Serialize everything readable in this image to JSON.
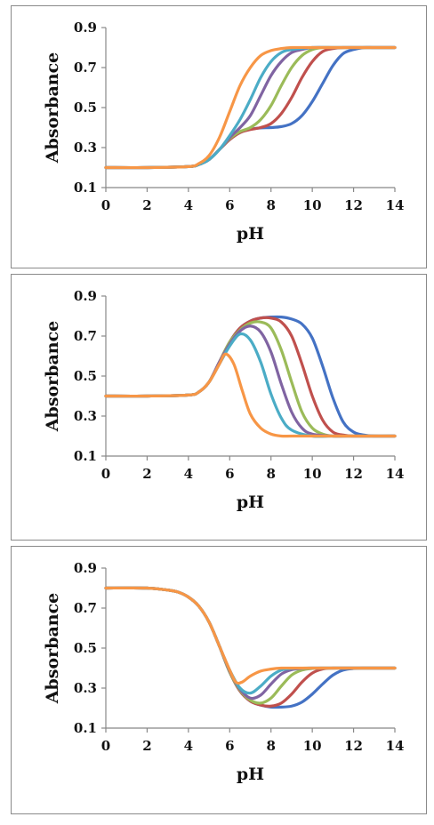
{
  "chart_data": [
    {
      "type": "line",
      "xlabel": "pH",
      "ylabel": "Absorbance",
      "xlim": [
        0,
        14
      ],
      "ylim": [
        0.1,
        0.9
      ],
      "xticks": [
        "0",
        "2",
        "4",
        "6",
        "8",
        "10",
        "12",
        "14"
      ],
      "yticks": [
        "0.1",
        "0.3",
        "0.5",
        "0.7",
        "0.9"
      ],
      "grid": false,
      "legend": "none",
      "series": [
        {
          "color": "#4472C4",
          "x": [
            0,
            2,
            4,
            4.5,
            5,
            5.5,
            6,
            6.5,
            7,
            7.5,
            8,
            8.5,
            9,
            9.5,
            10,
            10.5,
            11,
            11.5,
            12,
            12.5,
            13,
            14
          ],
          "y": [
            0.2,
            0.2,
            0.205,
            0.215,
            0.24,
            0.29,
            0.34,
            0.375,
            0.392,
            0.398,
            0.4,
            0.405,
            0.42,
            0.46,
            0.53,
            0.62,
            0.71,
            0.77,
            0.79,
            0.8,
            0.8,
            0.8
          ]
        },
        {
          "color": "#C0504D",
          "x": [
            0,
            2,
            4,
            4.5,
            5,
            5.5,
            6,
            6.5,
            7,
            7.5,
            8,
            8.5,
            9,
            9.5,
            10,
            10.5,
            11,
            11.5,
            12,
            13,
            14
          ],
          "y": [
            0.2,
            0.2,
            0.205,
            0.215,
            0.24,
            0.29,
            0.34,
            0.375,
            0.39,
            0.4,
            0.42,
            0.47,
            0.55,
            0.65,
            0.73,
            0.78,
            0.795,
            0.8,
            0.8,
            0.8,
            0.8
          ]
        },
        {
          "color": "#9BBB59",
          "x": [
            0,
            2,
            4,
            4.5,
            5,
            5.5,
            6,
            6.5,
            7,
            7.5,
            8,
            8.5,
            9,
            9.5,
            10,
            10.5,
            11,
            12,
            13,
            14
          ],
          "y": [
            0.2,
            0.2,
            0.205,
            0.215,
            0.24,
            0.29,
            0.345,
            0.38,
            0.4,
            0.44,
            0.51,
            0.61,
            0.7,
            0.76,
            0.79,
            0.8,
            0.8,
            0.8,
            0.8,
            0.8
          ]
        },
        {
          "color": "#8064A2",
          "x": [
            0,
            2,
            4,
            4.5,
            5,
            5.5,
            6,
            6.5,
            7,
            7.5,
            8,
            8.5,
            9,
            9.5,
            10,
            11,
            12,
            13,
            14
          ],
          "y": [
            0.2,
            0.2,
            0.205,
            0.215,
            0.24,
            0.29,
            0.35,
            0.4,
            0.46,
            0.56,
            0.66,
            0.73,
            0.775,
            0.79,
            0.8,
            0.8,
            0.8,
            0.8,
            0.8
          ]
        },
        {
          "color": "#4BACC6",
          "x": [
            0,
            2,
            4,
            4.5,
            5,
            5.5,
            6,
            6.5,
            7,
            7.5,
            8,
            8.5,
            9,
            10,
            11,
            12,
            13,
            14
          ],
          "y": [
            0.2,
            0.2,
            0.205,
            0.215,
            0.24,
            0.29,
            0.36,
            0.44,
            0.54,
            0.65,
            0.73,
            0.775,
            0.79,
            0.8,
            0.8,
            0.8,
            0.8,
            0.8
          ]
        },
        {
          "color": "#F79646",
          "x": [
            0,
            2,
            4,
            4.5,
            5,
            5.5,
            6,
            6.5,
            7,
            7.5,
            8,
            8.5,
            9,
            10,
            11,
            12,
            13,
            14
          ],
          "y": [
            0.2,
            0.2,
            0.205,
            0.22,
            0.26,
            0.35,
            0.48,
            0.61,
            0.7,
            0.76,
            0.785,
            0.795,
            0.8,
            0.8,
            0.8,
            0.8,
            0.8,
            0.8
          ]
        }
      ]
    },
    {
      "type": "line",
      "xlabel": "pH",
      "ylabel": "Absorbance",
      "xlim": [
        0,
        14
      ],
      "ylim": [
        0.1,
        0.9
      ],
      "xticks": [
        "0",
        "2",
        "4",
        "6",
        "8",
        "10",
        "12",
        "14"
      ],
      "yticks": [
        "0.1",
        "0.3",
        "0.5",
        "0.7",
        "0.9"
      ],
      "grid": false,
      "legend": "none",
      "series": [
        {
          "color": "#4472C4",
          "x": [
            0,
            2,
            4,
            4.5,
            5,
            5.5,
            6,
            6.5,
            7,
            7.5,
            8,
            8.5,
            9,
            9.5,
            10,
            10.5,
            11,
            11.5,
            12,
            12.5,
            13,
            14
          ],
          "y": [
            0.4,
            0.4,
            0.405,
            0.42,
            0.47,
            0.57,
            0.67,
            0.74,
            0.775,
            0.79,
            0.795,
            0.795,
            0.785,
            0.76,
            0.69,
            0.55,
            0.39,
            0.27,
            0.22,
            0.205,
            0.2,
            0.2
          ]
        },
        {
          "color": "#C0504D",
          "x": [
            0,
            2,
            4,
            4.5,
            5,
            5.5,
            6,
            6.5,
            7,
            7.5,
            8,
            8.5,
            9,
            9.5,
            10,
            10.5,
            11,
            11.5,
            12,
            13,
            14
          ],
          "y": [
            0.4,
            0.4,
            0.405,
            0.42,
            0.47,
            0.57,
            0.67,
            0.74,
            0.775,
            0.79,
            0.79,
            0.77,
            0.7,
            0.56,
            0.4,
            0.28,
            0.22,
            0.205,
            0.2,
            0.2,
            0.2
          ]
        },
        {
          "color": "#9BBB59",
          "x": [
            0,
            2,
            4,
            4.5,
            5,
            5.5,
            6,
            6.5,
            7,
            7.5,
            8,
            8.5,
            9,
            9.5,
            10,
            10.5,
            11,
            12,
            13,
            14
          ],
          "y": [
            0.4,
            0.4,
            0.405,
            0.42,
            0.47,
            0.57,
            0.67,
            0.73,
            0.765,
            0.77,
            0.74,
            0.63,
            0.47,
            0.32,
            0.24,
            0.21,
            0.2,
            0.2,
            0.2,
            0.2
          ]
        },
        {
          "color": "#8064A2",
          "x": [
            0,
            2,
            4,
            4.5,
            5,
            5.5,
            6,
            6.5,
            7,
            7.5,
            8,
            8.5,
            9,
            9.5,
            10,
            11,
            12,
            13,
            14
          ],
          "y": [
            0.4,
            0.4,
            0.405,
            0.42,
            0.47,
            0.57,
            0.66,
            0.725,
            0.75,
            0.72,
            0.62,
            0.46,
            0.32,
            0.24,
            0.21,
            0.2,
            0.2,
            0.2,
            0.2
          ]
        },
        {
          "color": "#4BACC6",
          "x": [
            0,
            2,
            4,
            4.5,
            5,
            5.5,
            6,
            6.5,
            7,
            7.5,
            8,
            8.5,
            9,
            10,
            11,
            12,
            13,
            14
          ],
          "y": [
            0.4,
            0.4,
            0.405,
            0.42,
            0.47,
            0.56,
            0.65,
            0.71,
            0.68,
            0.57,
            0.41,
            0.29,
            0.23,
            0.2,
            0.2,
            0.2,
            0.2,
            0.2
          ]
        },
        {
          "color": "#F79646",
          "x": [
            0,
            2,
            4,
            4.5,
            5,
            5.5,
            5.8,
            6.2,
            6.6,
            7,
            7.5,
            8,
            8.5,
            9,
            10,
            11,
            12,
            13,
            14
          ],
          "y": [
            0.4,
            0.4,
            0.405,
            0.42,
            0.47,
            0.56,
            0.61,
            0.56,
            0.43,
            0.31,
            0.24,
            0.21,
            0.2,
            0.2,
            0.2,
            0.2,
            0.2,
            0.2,
            0.2
          ]
        }
      ]
    },
    {
      "type": "line",
      "xlabel": "pH",
      "ylabel": "Absorbance",
      "xlim": [
        0,
        14
      ],
      "ylim": [
        0.1,
        0.9
      ],
      "xticks": [
        "0",
        "2",
        "4",
        "6",
        "8",
        "10",
        "12",
        "14"
      ],
      "yticks": [
        "0.1",
        "0.3",
        "0.5",
        "0.7",
        "0.9"
      ],
      "grid": false,
      "legend": "none",
      "series": [
        {
          "color": "#4472C4",
          "x": [
            0,
            2,
            3,
            3.5,
            4,
            4.5,
            5,
            5.5,
            6,
            6.5,
            7,
            7.5,
            8,
            8.5,
            9,
            9.5,
            10,
            10.5,
            11,
            11.5,
            12,
            12.5,
            13,
            14
          ],
          "y": [
            0.8,
            0.8,
            0.79,
            0.78,
            0.755,
            0.71,
            0.63,
            0.51,
            0.38,
            0.285,
            0.235,
            0.215,
            0.205,
            0.205,
            0.21,
            0.23,
            0.27,
            0.32,
            0.365,
            0.39,
            0.398,
            0.4,
            0.4,
            0.4
          ]
        },
        {
          "color": "#C0504D",
          "x": [
            0,
            2,
            3,
            3.5,
            4,
            4.5,
            5,
            5.5,
            6,
            6.5,
            7,
            7.5,
            8,
            8.5,
            9,
            9.5,
            10,
            10.5,
            11,
            11.5,
            12,
            13,
            14
          ],
          "y": [
            0.8,
            0.8,
            0.79,
            0.78,
            0.755,
            0.71,
            0.63,
            0.51,
            0.38,
            0.285,
            0.235,
            0.215,
            0.21,
            0.225,
            0.27,
            0.33,
            0.375,
            0.395,
            0.4,
            0.4,
            0.4,
            0.4,
            0.4
          ]
        },
        {
          "color": "#9BBB59",
          "x": [
            0,
            2,
            3,
            3.5,
            4,
            4.5,
            5,
            5.5,
            6,
            6.5,
            7,
            7.5,
            8,
            8.5,
            9,
            9.5,
            10,
            10.5,
            11,
            12,
            13,
            14
          ],
          "y": [
            0.8,
            0.8,
            0.79,
            0.78,
            0.755,
            0.71,
            0.63,
            0.51,
            0.38,
            0.29,
            0.24,
            0.225,
            0.25,
            0.31,
            0.365,
            0.39,
            0.398,
            0.4,
            0.4,
            0.4,
            0.4,
            0.4
          ]
        },
        {
          "color": "#8064A2",
          "x": [
            0,
            2,
            3,
            3.5,
            4,
            4.5,
            5,
            5.5,
            6,
            6.5,
            7,
            7.5,
            8,
            8.5,
            9,
            9.5,
            10,
            11,
            12,
            13,
            14
          ],
          "y": [
            0.8,
            0.8,
            0.79,
            0.78,
            0.755,
            0.71,
            0.63,
            0.51,
            0.385,
            0.295,
            0.25,
            0.265,
            0.32,
            0.37,
            0.392,
            0.398,
            0.4,
            0.4,
            0.4,
            0.4,
            0.4
          ]
        },
        {
          "color": "#4BACC6",
          "x": [
            0,
            2,
            3,
            3.5,
            4,
            4.5,
            5,
            5.5,
            6,
            6.5,
            7,
            7.5,
            8,
            8.5,
            9,
            10,
            11,
            12,
            13,
            14
          ],
          "y": [
            0.8,
            0.8,
            0.79,
            0.78,
            0.755,
            0.71,
            0.63,
            0.51,
            0.39,
            0.3,
            0.275,
            0.31,
            0.36,
            0.39,
            0.398,
            0.4,
            0.4,
            0.4,
            0.4,
            0.4
          ]
        },
        {
          "color": "#F79646",
          "x": [
            0,
            2,
            3,
            3.5,
            4,
            4.5,
            5,
            5.5,
            6,
            6.3,
            6.6,
            7,
            7.5,
            8,
            8.5,
            9,
            10,
            11,
            12,
            13,
            14
          ],
          "y": [
            0.8,
            0.8,
            0.79,
            0.78,
            0.755,
            0.71,
            0.63,
            0.51,
            0.39,
            0.33,
            0.33,
            0.36,
            0.385,
            0.395,
            0.4,
            0.4,
            0.4,
            0.4,
            0.4,
            0.4,
            0.4
          ]
        }
      ]
    }
  ]
}
